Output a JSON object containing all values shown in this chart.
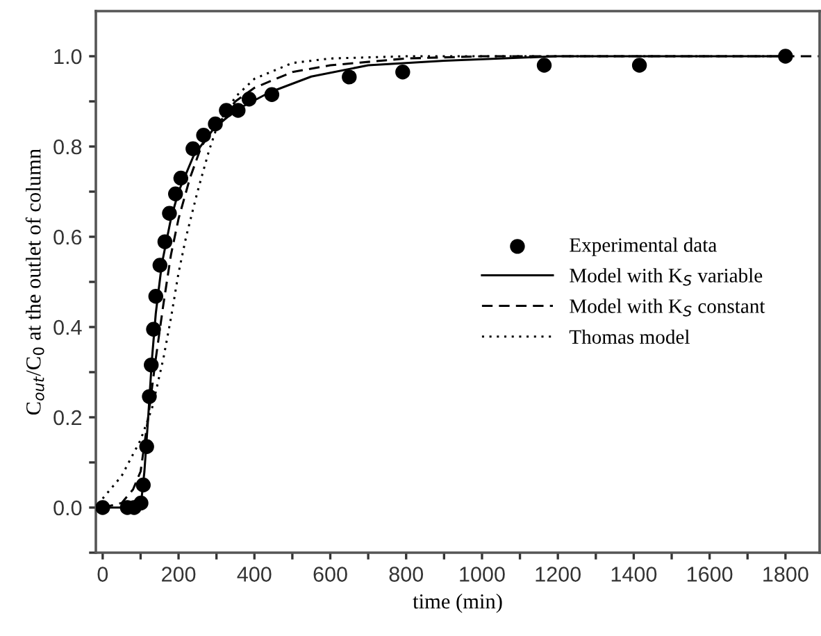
{
  "chart_data": {
    "type": "line",
    "xlabel": "time (min)",
    "ylabel": "C$_{out}$/C$_{0}$ at the outlet of column",
    "xlim": [
      -18,
      1890
    ],
    "ylim": [
      -0.1,
      1.1
    ],
    "xticks": [
      0,
      {
        "value": 100,
        "label": null
      },
      200,
      {
        "value": 300,
        "label": null
      },
      400,
      {
        "value": 500,
        "label": null
      },
      600,
      {
        "value": 700,
        "label": null
      },
      800,
      {
        "value": 900,
        "label": null
      },
      1000,
      {
        "value": 1100,
        "label": null
      },
      1200,
      {
        "value": 1300,
        "label": null
      },
      1400,
      {
        "value": 1500,
        "label": null
      },
      1600,
      {
        "value": 1700,
        "label": null
      },
      1800
    ],
    "yticks": [
      {
        "value": -0.1,
        "label": null
      },
      {
        "value": 0,
        "label": "0.0"
      },
      {
        "value": 0.1,
        "label": null
      },
      {
        "value": 0.2,
        "label": "0.2"
      },
      {
        "value": 0.3,
        "label": null
      },
      {
        "value": 0.4,
        "label": "0.4"
      },
      {
        "value": 0.5,
        "label": null
      },
      {
        "value": 0.6,
        "label": "0.6"
      },
      {
        "value": 0.7,
        "label": null
      },
      {
        "value": 0.8,
        "label": "0.8"
      },
      {
        "value": 0.9,
        "label": null
      },
      {
        "value": 1.0,
        "label": "1.0"
      }
    ],
    "grid": false,
    "legend": "right",
    "series": [
      {
        "name": "Experimental data",
        "type": "scatter",
        "marker": "circle",
        "color": "#000000",
        "x": [
          0,
          65,
          83,
          101,
          107,
          116,
          123,
          128,
          134,
          140,
          151,
          164,
          176,
          192,
          206,
          238,
          266,
          297,
          326,
          357,
          386,
          446,
          650,
          791,
          1164,
          1415,
          1800
        ],
        "values": [
          0.0,
          0.0,
          0.0,
          0.01,
          0.05,
          0.135,
          0.246,
          0.316,
          0.395,
          0.468,
          0.537,
          0.589,
          0.652,
          0.695,
          0.73,
          0.795,
          0.825,
          0.85,
          0.88,
          0.88,
          0.905,
          0.915,
          0.954,
          0.965,
          0.98,
          0.98,
          1.0
        ]
      },
      {
        "name": "Model with K$_{S}$ variable",
        "line_style": "solid",
        "color": "#000000",
        "x": [
          0,
          100,
          110,
          120,
          130,
          140,
          156,
          180,
          200,
          240,
          293,
          350,
          440,
          550,
          700,
          900,
          1200,
          1800
        ],
        "values": [
          0,
          0,
          0.08,
          0.2,
          0.33,
          0.43,
          0.54,
          0.64,
          0.7,
          0.78,
          0.84,
          0.88,
          0.92,
          0.955,
          0.98,
          0.99,
          1.0,
          1.0
        ]
      },
      {
        "name": "Model with K$_{S}$ constant",
        "line_style": "dashed",
        "color": "#000000",
        "x": [
          0,
          50,
          80,
          100,
          120,
          140,
          160,
          180,
          200,
          230,
          260,
          300,
          350,
          400,
          500,
          600,
          800,
          1000,
          1890
        ],
        "values": [
          0,
          0.01,
          0.04,
          0.08,
          0.2,
          0.33,
          0.45,
          0.56,
          0.64,
          0.73,
          0.8,
          0.85,
          0.9,
          0.93,
          0.965,
          0.98,
          0.995,
          1.0,
          1.0
        ]
      },
      {
        "name": "Thomas model",
        "line_style": "dotted",
        "color": "#000000",
        "x": [
          0,
          50,
          100,
          130,
          160,
          180,
          200,
          220,
          250,
          280,
          300,
          350,
          400,
          500,
          600,
          800,
          1800
        ],
        "values": [
          0.02,
          0.07,
          0.15,
          0.22,
          0.33,
          0.42,
          0.52,
          0.6,
          0.7,
          0.79,
          0.84,
          0.91,
          0.95,
          0.985,
          0.995,
          1.0,
          1.0
        ]
      }
    ]
  }
}
